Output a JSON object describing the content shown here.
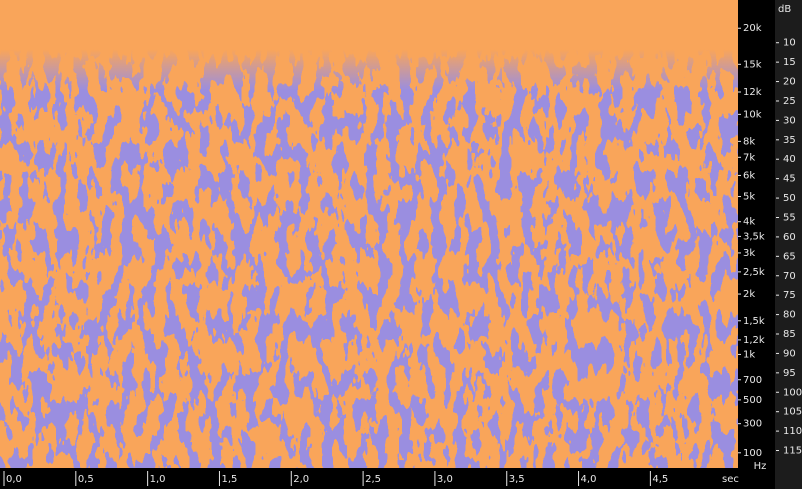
{
  "chart_data": {
    "type": "spectrogram",
    "yscale": "mel",
    "ylim": [
      12,
      25000
    ],
    "yticks": [
      {
        "value": 20000,
        "label": "20k"
      },
      {
        "value": 15000,
        "label": "15k"
      },
      {
        "value": 12000,
        "label": "12k"
      },
      {
        "value": 10000,
        "label": "10k"
      },
      {
        "value": 8000,
        "label": "8k"
      },
      {
        "value": 7000,
        "label": "7k"
      },
      {
        "value": 6000,
        "label": "6k"
      },
      {
        "value": 5000,
        "label": "5k"
      },
      {
        "value": 4000,
        "label": "4k"
      },
      {
        "value": 3500,
        "label": "3,5k"
      },
      {
        "value": 3000,
        "label": "3k"
      },
      {
        "value": 2500,
        "label": "2,5k"
      },
      {
        "value": 2000,
        "label": "2k"
      },
      {
        "value": 1500,
        "label": "1,5k"
      },
      {
        "value": 1200,
        "label": "1,2k"
      },
      {
        "value": 1000,
        "label": "1k"
      },
      700,
      500,
      300,
      100
    ],
    "y_unit": "Hz",
    "xlim": [
      0,
      5.11
    ],
    "xticks": [
      {
        "value": 0,
        "label": "0,0"
      },
      {
        "value": 0.5,
        "label": "0,5"
      },
      {
        "value": 1,
        "label": "1,0"
      },
      {
        "value": 1.5,
        "label": "1,5"
      },
      {
        "value": 2,
        "label": "2,0"
      },
      {
        "value": 2.5,
        "label": "2,5"
      },
      {
        "value": 3,
        "label": "3,0"
      },
      {
        "value": 3.5,
        "label": "3,5"
      },
      {
        "value": 4,
        "label": "4,0"
      },
      {
        "value": 4.5,
        "label": "4,5"
      }
    ],
    "x_unit": "sec",
    "y2_label": "dB",
    "y2lim": [
      -1,
      119.5
    ],
    "y2ticks": [
      10,
      15,
      20,
      25,
      30,
      35,
      40,
      45,
      50,
      55,
      60,
      65,
      70,
      75,
      80,
      85,
      90,
      95,
      100,
      105,
      110,
      115
    ],
    "colors": {
      "high": "#f9a55a",
      "low": "#9a8ee0"
    }
  }
}
